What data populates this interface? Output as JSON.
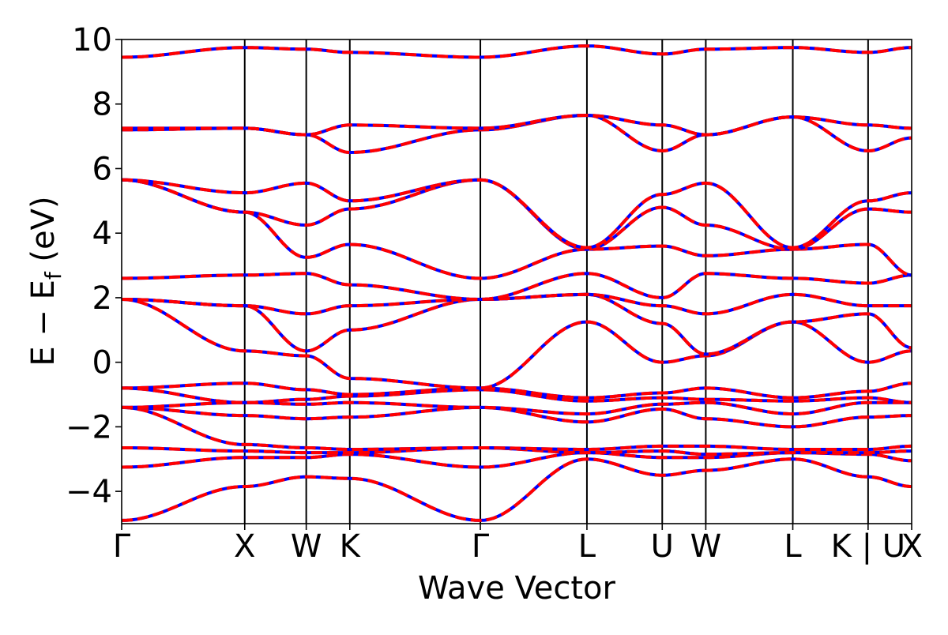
{
  "chart_data": {
    "type": "line",
    "title": "",
    "xlabel": "Wave Vector",
    "ylabel_parts": {
      "main": "E − E",
      "subscript": "f",
      "units": " (eV)"
    },
    "ylim": [
      -5,
      10
    ],
    "yticks": [
      -4,
      -2,
      0,
      2,
      4,
      6,
      8,
      10
    ],
    "ytick_labels": [
      "−4",
      "−2",
      "0",
      "2",
      "4",
      "6",
      "8",
      "10"
    ],
    "high_symmetry_path": [
      "Γ",
      "X",
      "W",
      "K",
      "Γ",
      "L",
      "U",
      "W",
      "L",
      "K | U",
      "X"
    ],
    "kpath_positions": [
      0.0,
      1.0,
      1.5,
      1.854,
      2.915,
      3.781,
      4.393,
      4.747,
      5.454,
      6.066,
      6.42
    ],
    "xtick_labels": [
      {
        "label": "Γ",
        "k": 0.0
      },
      {
        "label": "X",
        "k": 1.0
      },
      {
        "label": "W",
        "k": 1.5
      },
      {
        "label": "K",
        "k": 1.854
      },
      {
        "label": "Γ",
        "k": 2.915
      },
      {
        "label": "L",
        "k": 3.781
      },
      {
        "label": "U",
        "k": 4.393
      },
      {
        "label": "W",
        "k": 4.747
      },
      {
        "label": "L",
        "k": 5.454
      },
      {
        "label": "K | U",
        "k": 6.066
      },
      {
        "label": "X",
        "k": 6.42
      }
    ],
    "vertical_lines_at": [
      1.0,
      1.5,
      1.854,
      2.915,
      3.781,
      4.393,
      4.747,
      5.454,
      6.066
    ],
    "colors": {
      "series_a": "#0000ff",
      "series_b": "#ff0000"
    },
    "series": [
      {
        "style": "solid-blue",
        "bands_eV_at_nodes": [
          [
            -4.9,
            -3.85,
            -3.55,
            -3.6,
            -4.9,
            -3.0,
            -3.5,
            -3.35,
            -3.0,
            -3.55,
            -3.85
          ],
          [
            -3.25,
            -2.95,
            -2.95,
            -2.85,
            -3.25,
            -2.8,
            -2.95,
            -2.95,
            -2.8,
            -2.85,
            -3.05
          ],
          [
            -2.65,
            -2.75,
            -2.8,
            -2.8,
            -2.65,
            -2.8,
            -2.75,
            -2.85,
            -2.8,
            -2.8,
            -2.75
          ],
          [
            -1.4,
            -2.55,
            -2.65,
            -2.7,
            -2.65,
            -2.7,
            -2.6,
            -2.6,
            -2.7,
            -2.7,
            -2.6
          ],
          [
            -1.4,
            -1.65,
            -1.75,
            -1.7,
            -1.4,
            -1.85,
            -1.45,
            -1.75,
            -2.0,
            -1.7,
            -1.65
          ],
          [
            -1.4,
            -1.25,
            -1.3,
            -1.25,
            -1.4,
            -1.6,
            -1.3,
            -1.25,
            -1.6,
            -1.25,
            -1.25
          ],
          [
            -0.8,
            -1.25,
            -1.15,
            -1.05,
            -0.85,
            -1.2,
            -1.1,
            -1.15,
            -1.2,
            -1.1,
            -1.25
          ],
          [
            -0.8,
            -0.65,
            -0.85,
            -1.0,
            -0.8,
            -1.1,
            -0.95,
            -0.8,
            -1.1,
            -0.9,
            -0.65
          ],
          [
            1.95,
            0.35,
            0.2,
            -0.5,
            -0.8,
            1.25,
            0.0,
            0.2,
            1.25,
            0.0,
            0.35
          ],
          [
            1.95,
            1.75,
            0.35,
            1.0,
            1.95,
            2.1,
            1.2,
            0.25,
            1.25,
            1.5,
            0.45
          ],
          [
            1.95,
            1.75,
            1.5,
            1.75,
            1.95,
            2.1,
            1.75,
            1.5,
            2.1,
            1.75,
            1.75
          ],
          [
            2.6,
            2.7,
            2.75,
            2.4,
            1.95,
            2.75,
            2.0,
            2.75,
            2.6,
            2.45,
            2.7
          ],
          [
            5.65,
            4.65,
            3.25,
            3.65,
            2.6,
            3.5,
            3.6,
            3.3,
            3.5,
            3.65,
            2.7
          ],
          [
            5.65,
            4.65,
            4.25,
            4.75,
            5.65,
            3.5,
            4.8,
            4.25,
            3.5,
            4.75,
            4.65
          ],
          [
            5.65,
            5.25,
            5.55,
            5.0,
            5.65,
            3.55,
            5.2,
            5.55,
            3.55,
            5.0,
            5.25
          ],
          [
            7.2,
            7.25,
            7.05,
            6.5,
            7.2,
            7.65,
            6.55,
            7.05,
            7.6,
            6.55,
            6.95
          ],
          [
            7.25,
            7.25,
            7.05,
            7.35,
            7.25,
            7.65,
            7.35,
            7.05,
            7.6,
            7.35,
            7.25
          ],
          [
            9.45,
            9.75,
            9.7,
            9.6,
            9.45,
            9.8,
            9.55,
            9.7,
            9.75,
            9.6,
            9.75
          ]
        ]
      },
      {
        "style": "dashed-red",
        "bands_eV_at_nodes": "identical to solid-blue"
      }
    ]
  }
}
